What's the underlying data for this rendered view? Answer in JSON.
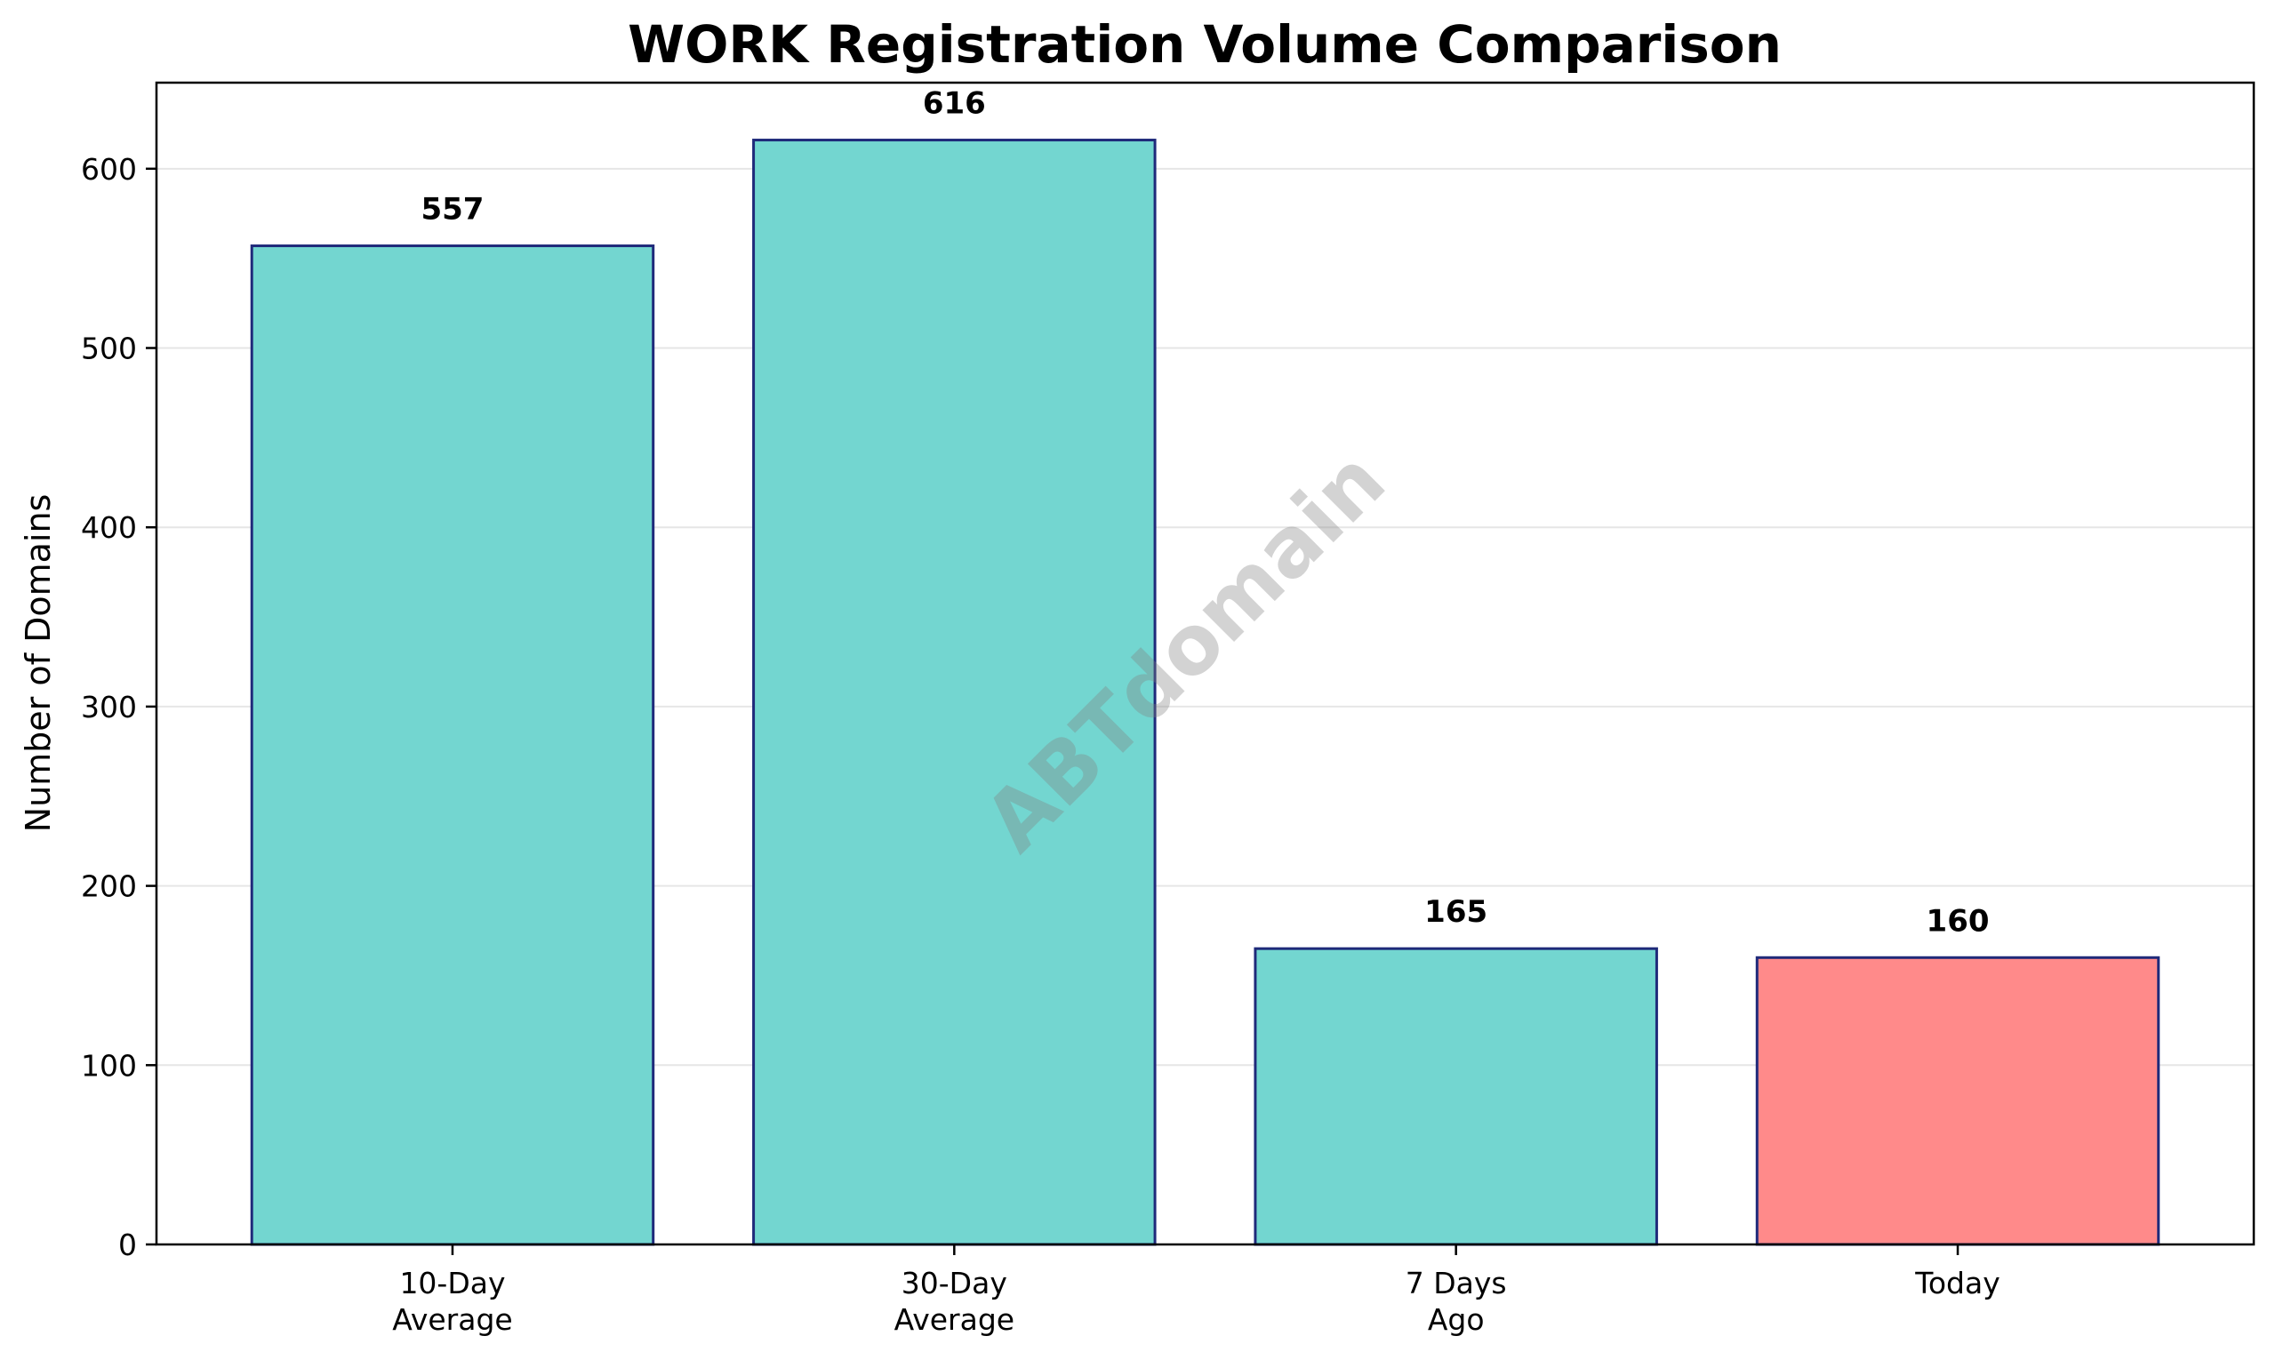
{
  "chart_data": {
    "type": "bar",
    "title": "WORK Registration Volume Comparison",
    "xlabel": "",
    "ylabel": "Number of Domains",
    "categories": [
      [
        "10-Day",
        "Average"
      ],
      [
        "30-Day",
        "Average"
      ],
      [
        "7 Days",
        "Ago"
      ],
      [
        "Today"
      ]
    ],
    "values": [
      557,
      616,
      165,
      160
    ],
    "value_labels": [
      "557",
      "616",
      "165",
      "160"
    ],
    "colors": [
      "#73d6d0",
      "#73d6d0",
      "#73d6d0",
      "#ff8a8a"
    ],
    "edge_color": "#1f2a7a",
    "ylim": [
      0,
      648
    ],
    "yticks": [
      0,
      100,
      200,
      300,
      400,
      500,
      600
    ],
    "ytick_labels": [
      "0",
      "100",
      "200",
      "300",
      "400",
      "500",
      "600"
    ],
    "grid": "y",
    "legend": "none"
  },
  "watermark": {
    "text": "ABTdomain"
  }
}
